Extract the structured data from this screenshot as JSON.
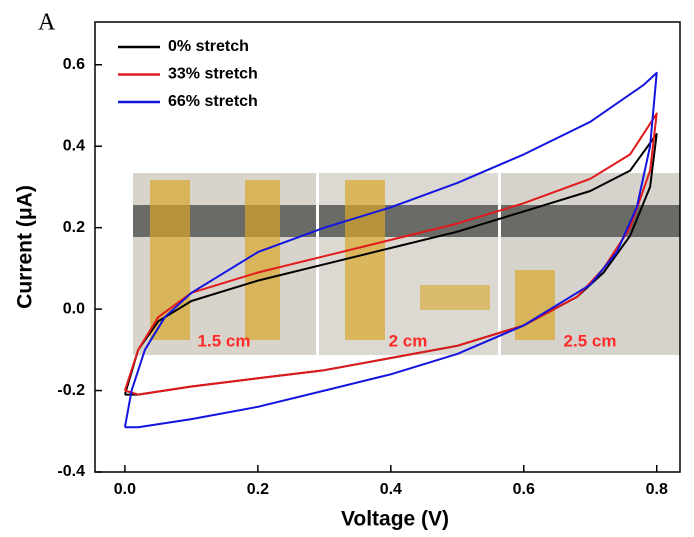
{
  "panel_label": "A",
  "insets": [
    {
      "label": "1.5 cm"
    },
    {
      "label": "2 cm"
    },
    {
      "label": "2.5 cm"
    }
  ],
  "chart_data": {
    "type": "line",
    "xlabel": "Voltage (V)",
    "ylabel": "Current (μA)",
    "xlim": [
      -0.045,
      0.835
    ],
    "ylim": [
      -0.4,
      0.705
    ],
    "xticks": [
      {
        "value": 0,
        "label": "0.0"
      },
      0.2,
      0.4,
      0.6,
      0.8
    ],
    "yticks": [
      {
        "value": -0.4,
        "label": "-0.4"
      },
      {
        "value": -0.2,
        "label": "-0.2"
      },
      {
        "value": 0,
        "label": "0.0"
      },
      0.2,
      0.4,
      0.6
    ],
    "legend": "upper left",
    "series": [
      {
        "name": "0% stretch",
        "color": "#000000",
        "x": [
          0,
          0.02,
          0.05,
          0.1,
          0.2,
          0.3,
          0.4,
          0.5,
          0.6,
          0.7,
          0.76,
          0.8,
          0.79,
          0.76,
          0.72,
          0.68,
          0.6,
          0.5,
          0.4,
          0.3,
          0.2,
          0.1,
          0.02,
          0
        ],
        "values": [
          -0.21,
          -0.1,
          -0.03,
          0.02,
          0.07,
          0.11,
          0.15,
          0.19,
          0.24,
          0.29,
          0.34,
          0.43,
          0.3,
          0.18,
          0.09,
          0.03,
          -0.04,
          -0.09,
          -0.12,
          -0.15,
          -0.17,
          -0.19,
          -0.21,
          -0.21
        ]
      },
      {
        "name": "33% stretch",
        "color": "#e31a1c",
        "x": [
          0,
          0.02,
          0.05,
          0.1,
          0.2,
          0.3,
          0.4,
          0.5,
          0.6,
          0.7,
          0.76,
          0.8,
          0.79,
          0.76,
          0.72,
          0.68,
          0.6,
          0.5,
          0.4,
          0.3,
          0.2,
          0.1,
          0.02,
          0
        ],
        "values": [
          -0.2,
          -0.1,
          -0.02,
          0.04,
          0.09,
          0.13,
          0.17,
          0.21,
          0.26,
          0.32,
          0.38,
          0.48,
          0.34,
          0.2,
          0.1,
          0.03,
          -0.04,
          -0.09,
          -0.12,
          -0.15,
          -0.17,
          -0.19,
          -0.21,
          -0.2
        ]
      },
      {
        "name": "66% stretch",
        "color": "#1414e0",
        "x": [
          0,
          0.01,
          0.03,
          0.06,
          0.1,
          0.2,
          0.3,
          0.4,
          0.5,
          0.6,
          0.7,
          0.78,
          0.8,
          0.79,
          0.77,
          0.74,
          0.7,
          0.6,
          0.5,
          0.4,
          0.3,
          0.2,
          0.1,
          0.02,
          0
        ],
        "values": [
          -0.29,
          -0.2,
          -0.1,
          -0.02,
          0.04,
          0.14,
          0.2,
          0.25,
          0.31,
          0.38,
          0.46,
          0.55,
          0.58,
          0.4,
          0.25,
          0.14,
          0.06,
          -0.04,
          -0.11,
          -0.16,
          -0.2,
          -0.24,
          -0.27,
          -0.29,
          -0.29
        ]
      }
    ]
  }
}
